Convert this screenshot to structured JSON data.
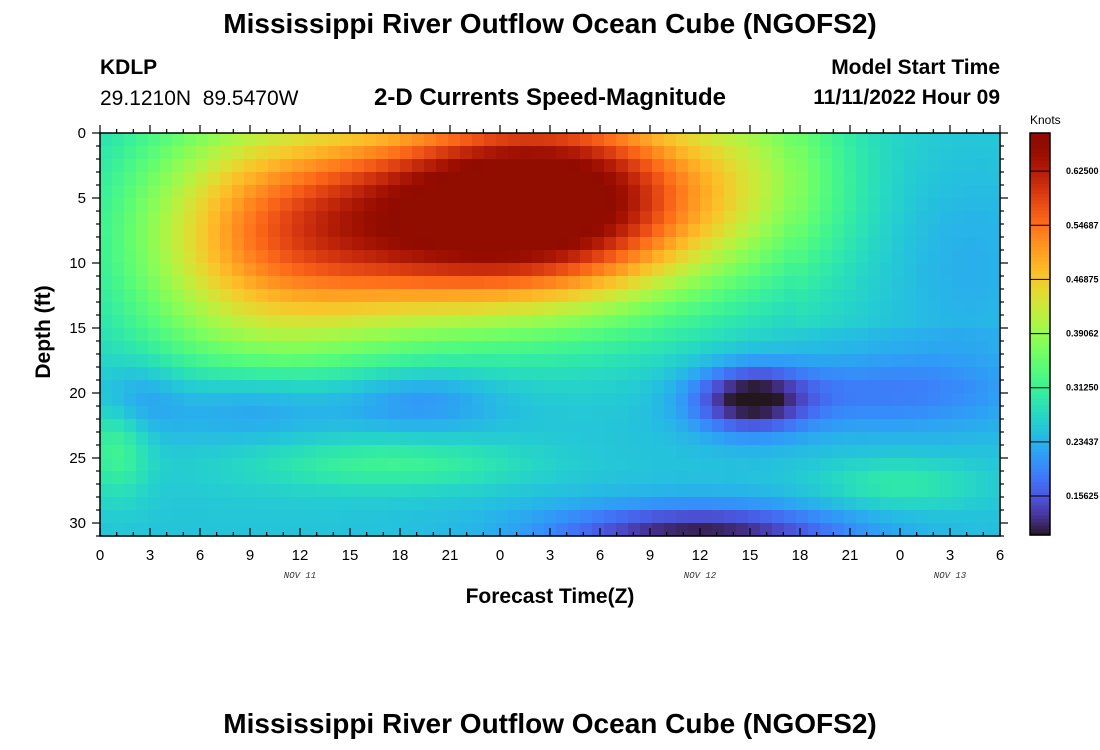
{
  "page": {
    "title": "Mississippi River Outflow Ocean Cube (NGOFS2)",
    "station_id": "KDLP",
    "station_coords": "29.1210N  89.5470W",
    "subtitle": "2-D Currents Speed-Magnitude",
    "model_start_label": "Model Start Time",
    "model_start_value": "11/11/2022 Hour 09",
    "bottom_title": "Mississippi River Outflow Ocean Cube (NGOFS2)"
  },
  "chart_data": {
    "type": "heatmap",
    "xlabel": "Forecast Time(Z)",
    "ylabel": "Depth (ft)",
    "x_range_hours": [
      0,
      54
    ],
    "x_tick_labels": [
      "0",
      "3",
      "6",
      "9",
      "12",
      "15",
      "18",
      "21",
      "0",
      "3",
      "6",
      "9",
      "12",
      "15",
      "18",
      "21",
      "0",
      "3",
      "6"
    ],
    "date_labels": [
      {
        "text": "NOV 11",
        "hour": 12
      },
      {
        "text": "NOV 12",
        "hour": 36
      },
      {
        "text": "NOV 13",
        "hour": 51
      }
    ],
    "y_range_ft": [
      0,
      31
    ],
    "y_ticks": [
      0,
      5,
      10,
      15,
      20,
      25,
      30
    ],
    "y_reversed": true,
    "colorbar": {
      "unit": "Knots",
      "ticks": [
        "0.15625",
        "0.23437",
        "0.31250",
        "0.39062",
        "0.46875",
        "0.54687",
        "0.62500"
      ],
      "range": [
        0.1,
        0.68
      ],
      "colormap": "turbo"
    },
    "features": [
      {
        "desc": "surface core max",
        "hour": 24,
        "depth_ft": 4,
        "value": 0.67
      },
      {
        "desc": "mid-depth minimum",
        "hour": 38,
        "depth_ft": 20.5,
        "value": 0.11
      },
      {
        "desc": "near-bottom minimum",
        "hour": 36,
        "depth_ft": 30.5,
        "value": 0.12
      },
      {
        "desc": "lower cell",
        "hour": 48,
        "depth_ft": 27,
        "value": 0.28
      },
      {
        "desc": "mid-level cell",
        "hour": 19,
        "depth_ft": 20.5,
        "value": 0.26
      }
    ]
  }
}
